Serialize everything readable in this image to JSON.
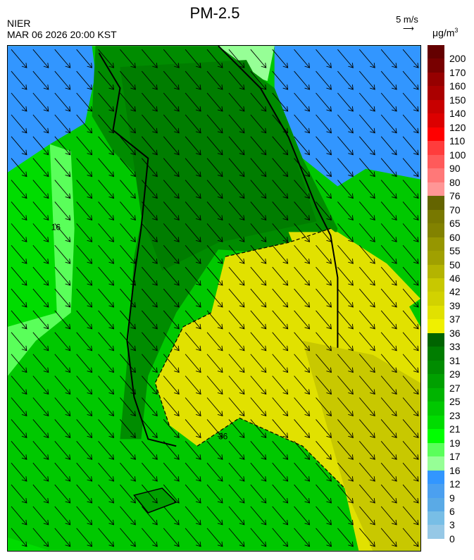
{
  "header": {
    "title": "PM-2.5",
    "agency": "NIER",
    "datetime": "MAR 06 2026 20:00 KST",
    "wind_reference": "5 m/s",
    "unit_base": "μg/m",
    "unit_exp": "3"
  },
  "map": {
    "contour_label": "36",
    "contour_label_16": "16",
    "wind_direction": "northwest to southeast"
  },
  "colorbar": {
    "labels": [
      "200",
      "170",
      "160",
      "150",
      "140",
      "120",
      "110",
      "100",
      "90",
      "80",
      "76",
      "70",
      "65",
      "60",
      "55",
      "50",
      "46",
      "42",
      "39",
      "37",
      "36",
      "33",
      "31",
      "29",
      "27",
      "25",
      "23",
      "21",
      "19",
      "17",
      "16",
      "12",
      "9",
      "6",
      "3",
      "0"
    ],
    "colors": [
      "#640000",
      "#780000",
      "#960000",
      "#aa0000",
      "#c80000",
      "#dc0000",
      "#ff0000",
      "#ff3c3c",
      "#ff5a5a",
      "#ff7878",
      "#ff9696",
      "#646400",
      "#787800",
      "#828200",
      "#969600",
      "#a0a000",
      "#b4b400",
      "#c8c800",
      "#d2d200",
      "#e1e100",
      "#f0f000",
      "#006400",
      "#007d00",
      "#008c00",
      "#00a000",
      "#00b400",
      "#00c800",
      "#00dc00",
      "#00ff00",
      "#5aff5a",
      "#96ff96",
      "#3296ff",
      "#4ba0f0",
      "#5aaae6",
      "#78bee6",
      "#96c8e6"
    ]
  }
}
